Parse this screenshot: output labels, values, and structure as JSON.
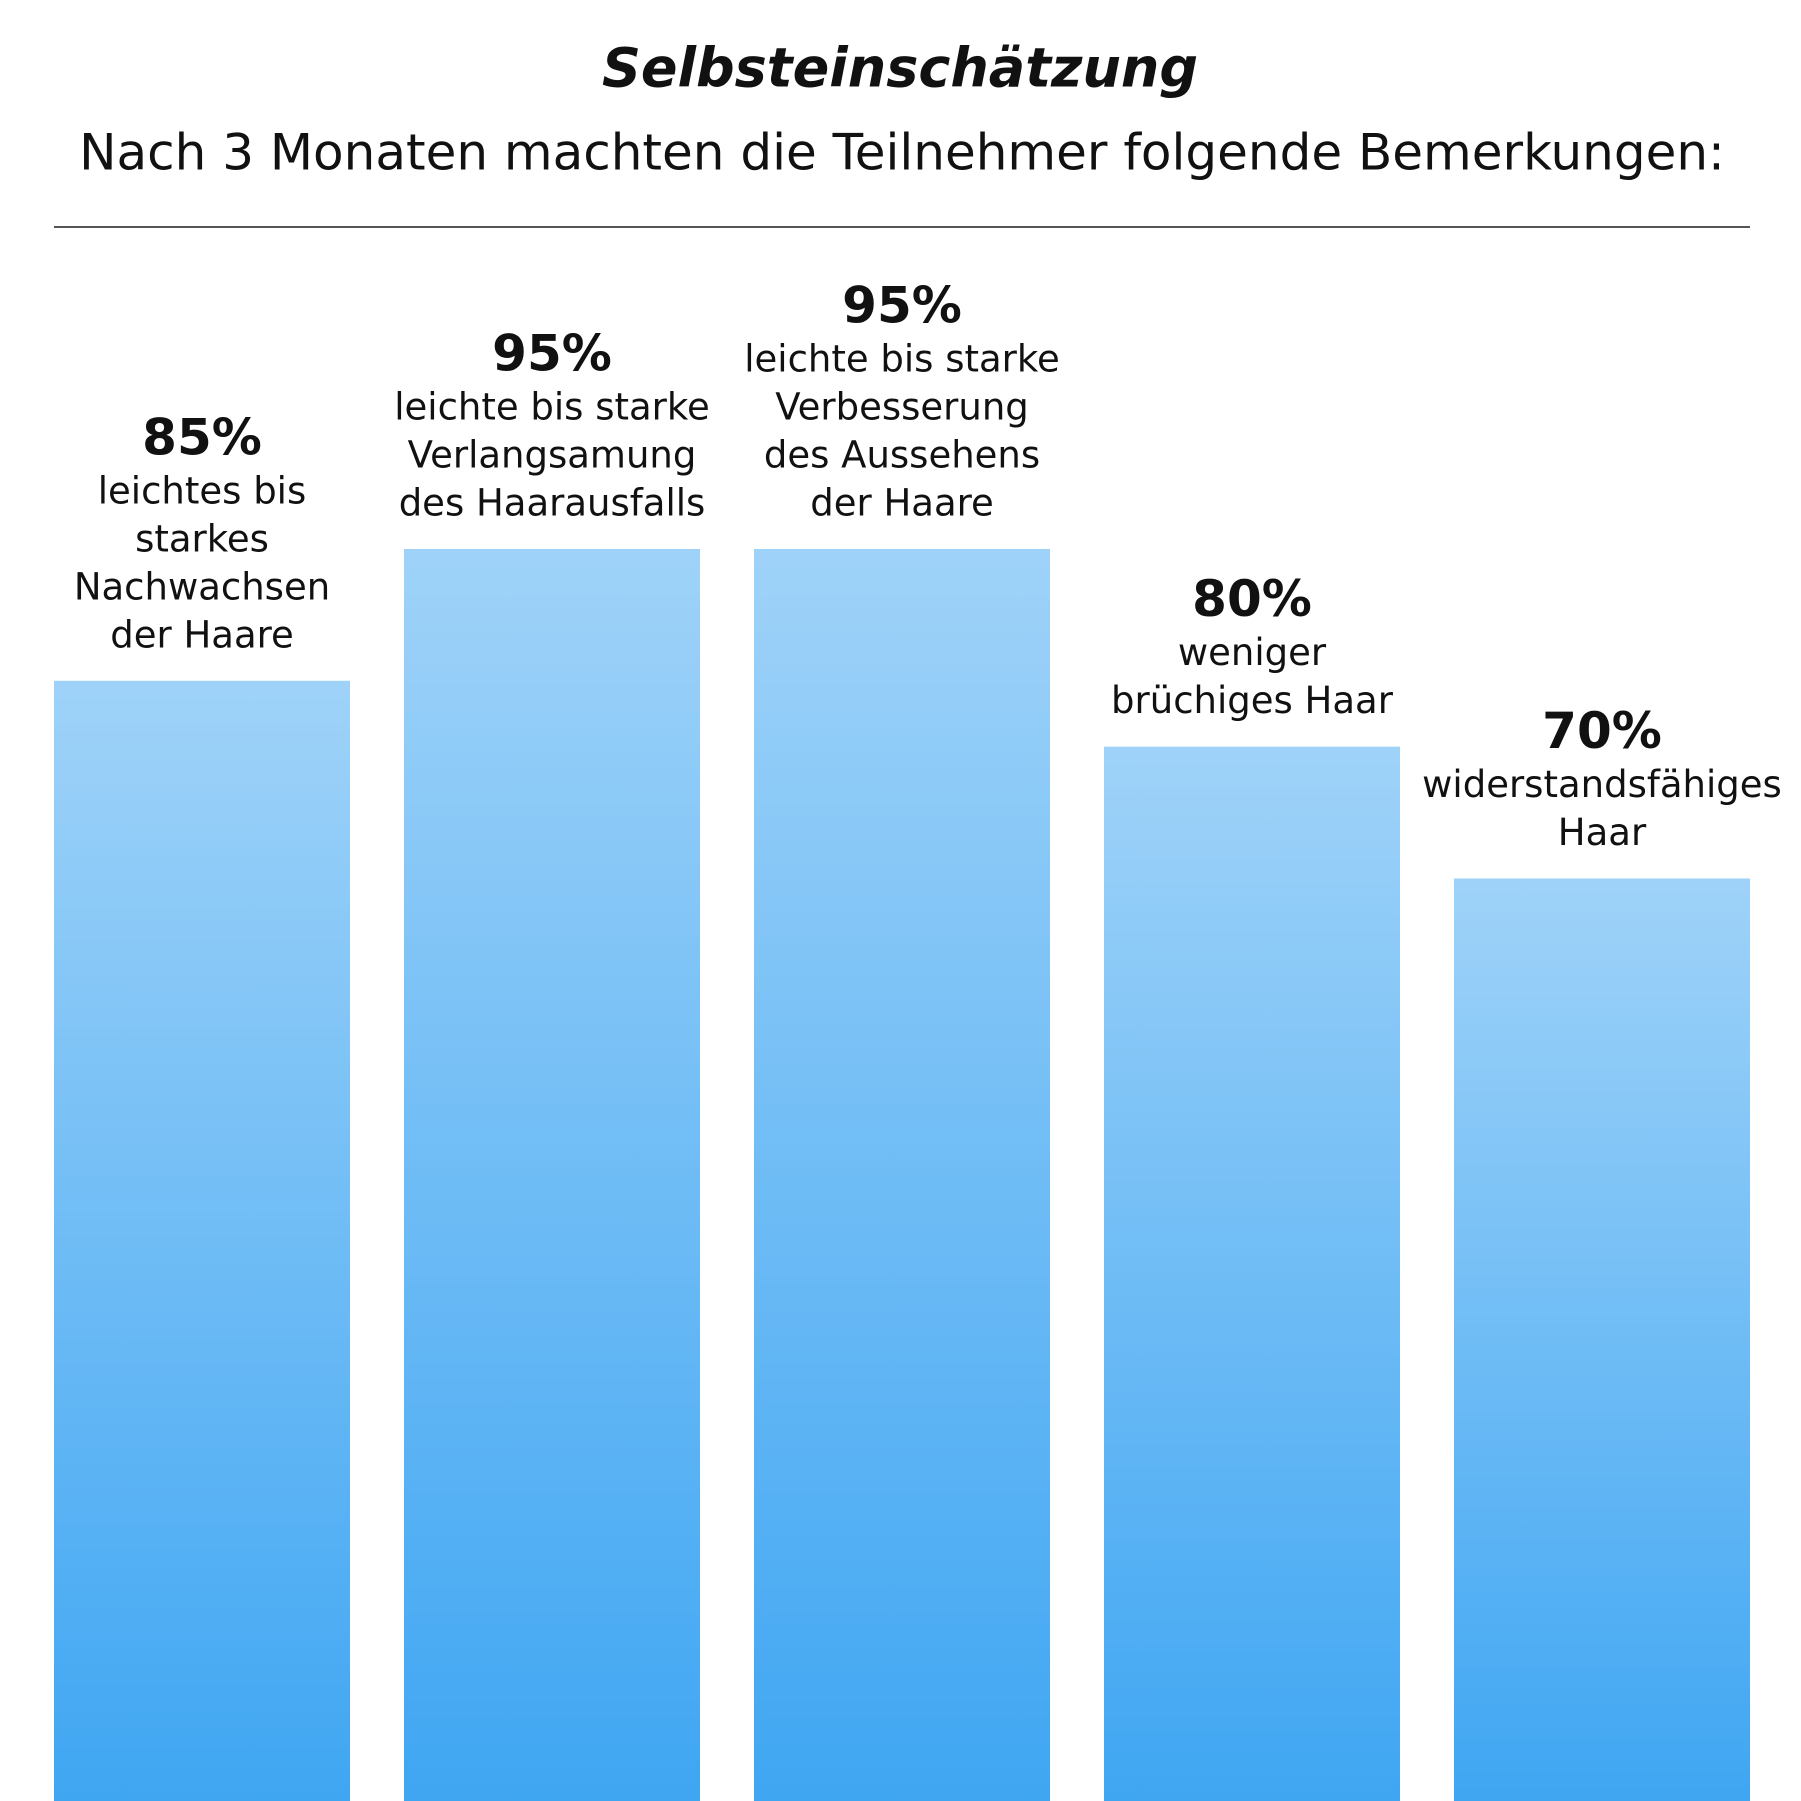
{
  "chart_data": {
    "type": "bar",
    "title": "Selbsteinschätzung",
    "subtitle": "Nach 3 Monaten machten die Teilnehmer folgende Bemerkungen:",
    "categories": [
      [
        "leichtes bis",
        "starkes",
        "Nachwachsen",
        "der Haare"
      ],
      [
        "leichte bis starke",
        "Verlangsamung",
        "des Haarausfalls"
      ],
      [
        "leichte bis starke",
        "Verbesserung",
        "des Aussehens",
        "der Haare"
      ],
      [
        "weniger",
        "brüchiges Haar"
      ],
      [
        "widerstandsfähiges",
        "Haar"
      ]
    ],
    "values": [
      85,
      95,
      95,
      80,
      70
    ],
    "value_labels": [
      "85%",
      "95%",
      "95%",
      "80%",
      "70%"
    ],
    "color": "#3fa6f2"
  }
}
